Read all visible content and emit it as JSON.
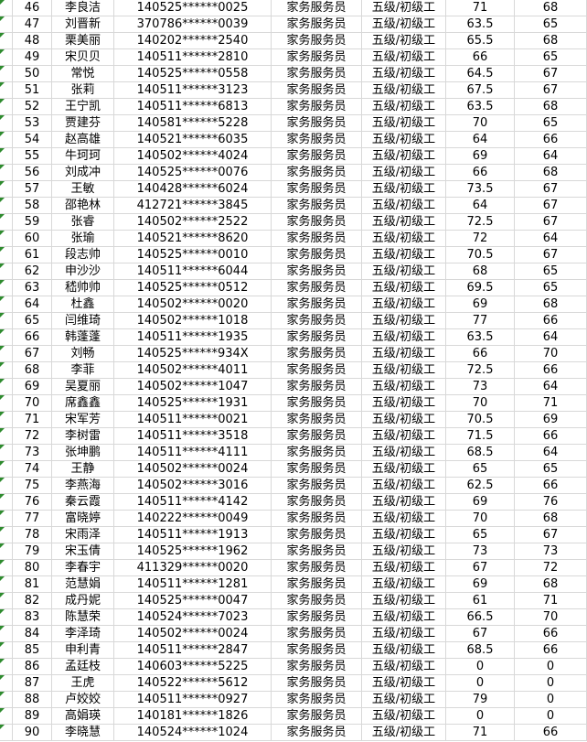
{
  "colors": {
    "gridline": "#d8d8d8",
    "text": "#000000",
    "error_triangle_green": "#2e8b2e",
    "background": "#ffffff"
  },
  "table": {
    "rows": [
      {
        "no": "46",
        "name": "李良洁",
        "id": "140525******0025",
        "job": "家务服务员",
        "level": "五级/初级工",
        "score1": "71",
        "score2": "68"
      },
      {
        "no": "47",
        "name": "刘晋新",
        "id": "370786******0039",
        "job": "家务服务员",
        "level": "五级/初级工",
        "score1": "63.5",
        "score2": "65"
      },
      {
        "no": "48",
        "name": "栗美丽",
        "id": "140202******2540",
        "job": "家务服务员",
        "level": "五级/初级工",
        "score1": "65.5",
        "score2": "68"
      },
      {
        "no": "49",
        "name": "宋贝贝",
        "id": "140511******2810",
        "job": "家务服务员",
        "level": "五级/初级工",
        "score1": "66",
        "score2": "65"
      },
      {
        "no": "50",
        "name": "常悦",
        "id": "140525******0558",
        "job": "家务服务员",
        "level": "五级/初级工",
        "score1": "64.5",
        "score2": "67"
      },
      {
        "no": "51",
        "name": "张莉",
        "id": "140511******3123",
        "job": "家务服务员",
        "level": "五级/初级工",
        "score1": "67.5",
        "score2": "67"
      },
      {
        "no": "52",
        "name": "王宁凯",
        "id": "140511******6813",
        "job": "家务服务员",
        "level": "五级/初级工",
        "score1": "63.5",
        "score2": "68"
      },
      {
        "no": "53",
        "name": "贾建芬",
        "id": "140581******5228",
        "job": "家务服务员",
        "level": "五级/初级工",
        "score1": "70",
        "score2": "65"
      },
      {
        "no": "54",
        "name": "赵高雄",
        "id": "140521******6035",
        "job": "家务服务员",
        "level": "五级/初级工",
        "score1": "64",
        "score2": "66"
      },
      {
        "no": "55",
        "name": "牛珂珂",
        "id": "140502******4024",
        "job": "家务服务员",
        "level": "五级/初级工",
        "score1": "69",
        "score2": "64"
      },
      {
        "no": "56",
        "name": "刘成冲",
        "id": "140525******0076",
        "job": "家务服务员",
        "level": "五级/初级工",
        "score1": "66",
        "score2": "68"
      },
      {
        "no": "57",
        "name": "王敏",
        "id": "140428******6024",
        "job": "家务服务员",
        "level": "五级/初级工",
        "score1": "73.5",
        "score2": "67"
      },
      {
        "no": "58",
        "name": "邵艳林",
        "id": "412721******3845",
        "job": "家务服务员",
        "level": "五级/初级工",
        "score1": "64",
        "score2": "67"
      },
      {
        "no": "59",
        "name": "张睿",
        "id": "140502******2522",
        "job": "家务服务员",
        "level": "五级/初级工",
        "score1": "72.5",
        "score2": "67"
      },
      {
        "no": "60",
        "name": "张瑜",
        "id": "140521******8620",
        "job": "家务服务员",
        "level": "五级/初级工",
        "score1": "72",
        "score2": "64"
      },
      {
        "no": "61",
        "name": "段志帅",
        "id": "140525******0010",
        "job": "家务服务员",
        "level": "五级/初级工",
        "score1": "70.5",
        "score2": "67"
      },
      {
        "no": "62",
        "name": "申沙沙",
        "id": "140511******6044",
        "job": "家务服务员",
        "level": "五级/初级工",
        "score1": "68",
        "score2": "65"
      },
      {
        "no": "63",
        "name": "嵇帅帅",
        "id": "140525******0512",
        "job": "家务服务员",
        "level": "五级/初级工",
        "score1": "69.5",
        "score2": "65"
      },
      {
        "no": "64",
        "name": "杜鑫",
        "id": "140502******0020",
        "job": "家务服务员",
        "level": "五级/初级工",
        "score1": "69",
        "score2": "68"
      },
      {
        "no": "65",
        "name": "闫维琦",
        "id": "140502******1018",
        "job": "家务服务员",
        "level": "五级/初级工",
        "score1": "77",
        "score2": "66"
      },
      {
        "no": "66",
        "name": "韩蓬蓬",
        "id": "140511******1935",
        "job": "家务服务员",
        "level": "五级/初级工",
        "score1": "63.5",
        "score2": "64"
      },
      {
        "no": "67",
        "name": "刘畅",
        "id": "140525******934X",
        "job": "家务服务员",
        "level": "五级/初级工",
        "score1": "66",
        "score2": "70"
      },
      {
        "no": "68",
        "name": "李菲",
        "id": "140502******4011",
        "job": "家务服务员",
        "level": "五级/初级工",
        "score1": "72.5",
        "score2": "66"
      },
      {
        "no": "69",
        "name": "吴夏丽",
        "id": "140502******1047",
        "job": "家务服务员",
        "level": "五级/初级工",
        "score1": "73",
        "score2": "64"
      },
      {
        "no": "70",
        "name": "席鑫鑫",
        "id": "140525******1931",
        "job": "家务服务员",
        "level": "五级/初级工",
        "score1": "70",
        "score2": "71"
      },
      {
        "no": "71",
        "name": "宋军芳",
        "id": "140511******0021",
        "job": "家务服务员",
        "level": "五级/初级工",
        "score1": "70.5",
        "score2": "69"
      },
      {
        "no": "72",
        "name": "李树雷",
        "id": "140511******3518",
        "job": "家务服务员",
        "level": "五级/初级工",
        "score1": "71.5",
        "score2": "66"
      },
      {
        "no": "73",
        "name": "张坤鹏",
        "id": "140511******4111",
        "job": "家务服务员",
        "level": "五级/初级工",
        "score1": "68.5",
        "score2": "64"
      },
      {
        "no": "74",
        "name": "王静",
        "id": "140502******0024",
        "job": "家务服务员",
        "level": "五级/初级工",
        "score1": "65",
        "score2": "65"
      },
      {
        "no": "75",
        "name": "李燕海",
        "id": "140502******3016",
        "job": "家务服务员",
        "level": "五级/初级工",
        "score1": "62.5",
        "score2": "66"
      },
      {
        "no": "76",
        "name": "秦云霞",
        "id": "140511******4142",
        "job": "家务服务员",
        "level": "五级/初级工",
        "score1": "69",
        "score2": "76"
      },
      {
        "no": "77",
        "name": "富晓婷",
        "id": "140222******0049",
        "job": "家务服务员",
        "level": "五级/初级工",
        "score1": "70",
        "score2": "68"
      },
      {
        "no": "78",
        "name": "宋雨泽",
        "id": "140511******1913",
        "job": "家务服务员",
        "level": "五级/初级工",
        "score1": "65",
        "score2": "67"
      },
      {
        "no": "79",
        "name": "宋玉倩",
        "id": "140525******1962",
        "job": "家务服务员",
        "level": "五级/初级工",
        "score1": "73",
        "score2": "73"
      },
      {
        "no": "80",
        "name": "李春宇",
        "id": "411329******0020",
        "job": "家务服务员",
        "level": "五级/初级工",
        "score1": "67",
        "score2": "72"
      },
      {
        "no": "81",
        "name": "范慧娟",
        "id": "140511******1281",
        "job": "家务服务员",
        "level": "五级/初级工",
        "score1": "69",
        "score2": "68"
      },
      {
        "no": "82",
        "name": "成丹妮",
        "id": "140525******0047",
        "job": "家务服务员",
        "level": "五级/初级工",
        "score1": "61",
        "score2": "71"
      },
      {
        "no": "83",
        "name": "陈慧荣",
        "id": "140524******7023",
        "job": "家务服务员",
        "level": "五级/初级工",
        "score1": "66.5",
        "score2": "70"
      },
      {
        "no": "84",
        "name": "李泽琦",
        "id": "140502******0024",
        "job": "家务服务员",
        "level": "五级/初级工",
        "score1": "67",
        "score2": "66"
      },
      {
        "no": "85",
        "name": "申利青",
        "id": "140511******2847",
        "job": "家务服务员",
        "level": "五级/初级工",
        "score1": "68.5",
        "score2": "66"
      },
      {
        "no": "86",
        "name": "孟廷枝",
        "id": "140603******5225",
        "job": "家务服务员",
        "level": "五级/初级工",
        "score1": "0",
        "score2": "0"
      },
      {
        "no": "87",
        "name": "王虎",
        "id": "140522******5612",
        "job": "家务服务员",
        "level": "五级/初级工",
        "score1": "0",
        "score2": "0"
      },
      {
        "no": "88",
        "name": "卢姣姣",
        "id": "140511******0927",
        "job": "家务服务员",
        "level": "五级/初级工",
        "score1": "79",
        "score2": "0"
      },
      {
        "no": "89",
        "name": "高娟瑛",
        "id": "140181******1826",
        "job": "家务服务员",
        "level": "五级/初级工",
        "score1": "0",
        "score2": "0"
      },
      {
        "no": "90",
        "name": "李晓慧",
        "id": "140524******1024",
        "job": "家务服务员",
        "level": "五级/初级工",
        "score1": "71",
        "score2": "66"
      }
    ]
  }
}
